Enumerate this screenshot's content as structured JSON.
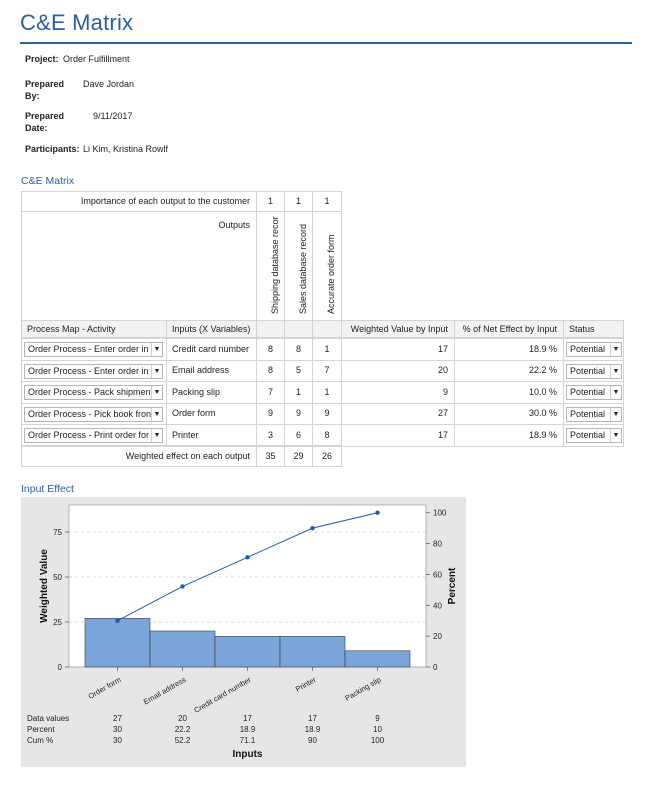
{
  "header": {
    "title": "C&E Matrix"
  },
  "meta": {
    "project_label": "Project:",
    "project_value": "Order Fulfillment",
    "prepared_by_label": "Prepared By:",
    "prepared_by_value": "Dave Jordan",
    "prepared_date_label": "Prepared Date:",
    "prepared_date_value": "9/11/2017",
    "participants_label": "Participants:",
    "participants_value": "Li Kim, Kristina Rowlf"
  },
  "matrix": {
    "section_title": "C&E Matrix",
    "importance_label": "Importance of each output to the customer",
    "importance": [
      "1",
      "1",
      "1"
    ],
    "outputs_label": "Outputs",
    "outputs": [
      "Shipping database recor",
      "Sales database record",
      "Accurate order form"
    ],
    "col_headers": {
      "process": "Process Map - Activity",
      "inputs": "Inputs (X Variables)",
      "weighted": "Weighted Value by Input",
      "percent": "% of Net Effect by Input",
      "status": "Status"
    },
    "rows": [
      {
        "process": "Order Process - Enter order in",
        "input": "Credit card number",
        "v1": "8",
        "v2": "8",
        "v3": "1",
        "weighted": "17",
        "percent": "18.9 %",
        "status": "Potential"
      },
      {
        "process": "Order Process - Enter order in",
        "input": "Email address",
        "v1": "8",
        "v2": "5",
        "v3": "7",
        "weighted": "20",
        "percent": "22.2 %",
        "status": "Potential"
      },
      {
        "process": "Order Process - Pack shipment",
        "input": "Packing slip",
        "v1": "7",
        "v2": "1",
        "v3": "1",
        "weighted": "9",
        "percent": "10.0 %",
        "status": "Potential"
      },
      {
        "process": "Order Process - Pick book fron",
        "input": "Order form",
        "v1": "9",
        "v2": "9",
        "v3": "9",
        "weighted": "27",
        "percent": "30.0 %",
        "status": "Potential"
      },
      {
        "process": "Order Process - Print order for",
        "input": "Printer",
        "v1": "3",
        "v2": "6",
        "v3": "8",
        "weighted": "17",
        "percent": "18.9 %",
        "status": "Potential"
      }
    ],
    "weighted_effect_label": "Weighted effect on each output",
    "weighted_effect": [
      "35",
      "29",
      "26"
    ],
    "dropdown_arrow": "▼"
  },
  "input_effect": {
    "section_title": "Input Effect"
  },
  "chart_data": {
    "type": "bar",
    "title": "",
    "categories": [
      "Order form",
      "Email address",
      "Credit card number",
      "Printer",
      "Packing slip"
    ],
    "series": [
      {
        "name": "Data values",
        "values": [
          27,
          20,
          17,
          17,
          9
        ]
      },
      {
        "name": "Cum %",
        "values": [
          30,
          52.2,
          71.1,
          90,
          100
        ]
      }
    ],
    "percent": [
      30,
      22.2,
      18.9,
      18.9,
      10
    ],
    "xlabel": "Inputs",
    "ylabel": "Weighted Value",
    "y2label": "Percent",
    "ylim": [
      0,
      90
    ],
    "y2lim": [
      0,
      105
    ],
    "yticks": [
      0,
      25,
      50,
      75
    ],
    "y2ticks": [
      0,
      20,
      40,
      60,
      80,
      100
    ],
    "table_rows": [
      {
        "label": "Data values",
        "values": [
          "27",
          "20",
          "17",
          "17",
          "9"
        ]
      },
      {
        "label": "Percent",
        "values": [
          "30",
          "22.2",
          "18.9",
          "18.9",
          "10"
        ]
      },
      {
        "label": "Cum %",
        "values": [
          "30",
          "52.2",
          "71.1",
          "90",
          "100"
        ]
      }
    ],
    "grid": true,
    "colors": {
      "bar": "#7ba4d9",
      "bar_edge": "#3a3a3a",
      "line": "#1f5ea8",
      "panel": "#e6e6e6",
      "plot": "#ffffff"
    }
  }
}
